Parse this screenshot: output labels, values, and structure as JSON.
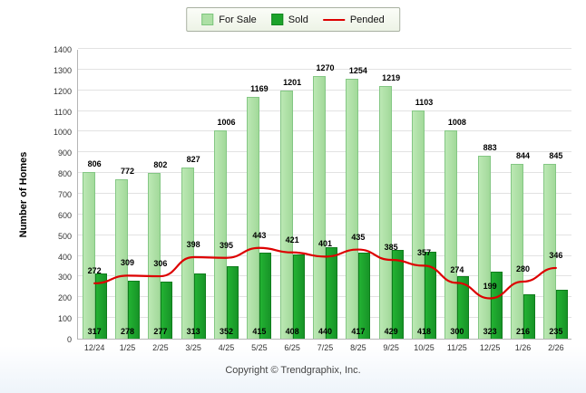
{
  "footer": "Copyright © Trendgraphix, Inc.",
  "chart_data": {
    "type": "bar",
    "title": "",
    "xlabel": "",
    "ylabel": "Number of Homes",
    "ylim": [
      0,
      1400
    ],
    "ytick_step": 100,
    "grid": true,
    "legend_position": "top",
    "categories": [
      "12/24",
      "1/25",
      "2/25",
      "3/25",
      "4/25",
      "5/25",
      "6/25",
      "7/25",
      "8/25",
      "9/25",
      "10/25",
      "11/25",
      "12/25",
      "1/26",
      "2/26"
    ],
    "series": [
      {
        "name": "For Sale",
        "type": "bar",
        "color": "#ade0a5",
        "values": [
          806,
          772,
          802,
          827,
          1006,
          1169,
          1201,
          1270,
          1254,
          1219,
          1103,
          1008,
          883,
          844,
          845
        ]
      },
      {
        "name": "Sold",
        "type": "bar",
        "color": "#1ca32b",
        "values": [
          317,
          278,
          277,
          313,
          352,
          415,
          408,
          440,
          417,
          429,
          418,
          300,
          323,
          216,
          235
        ]
      },
      {
        "name": "Pended",
        "type": "line",
        "color": "#dd0000",
        "values": [
          272,
          309,
          306,
          398,
          395,
          443,
          421,
          401,
          435,
          385,
          357,
          274,
          199,
          280,
          346
        ]
      }
    ]
  }
}
